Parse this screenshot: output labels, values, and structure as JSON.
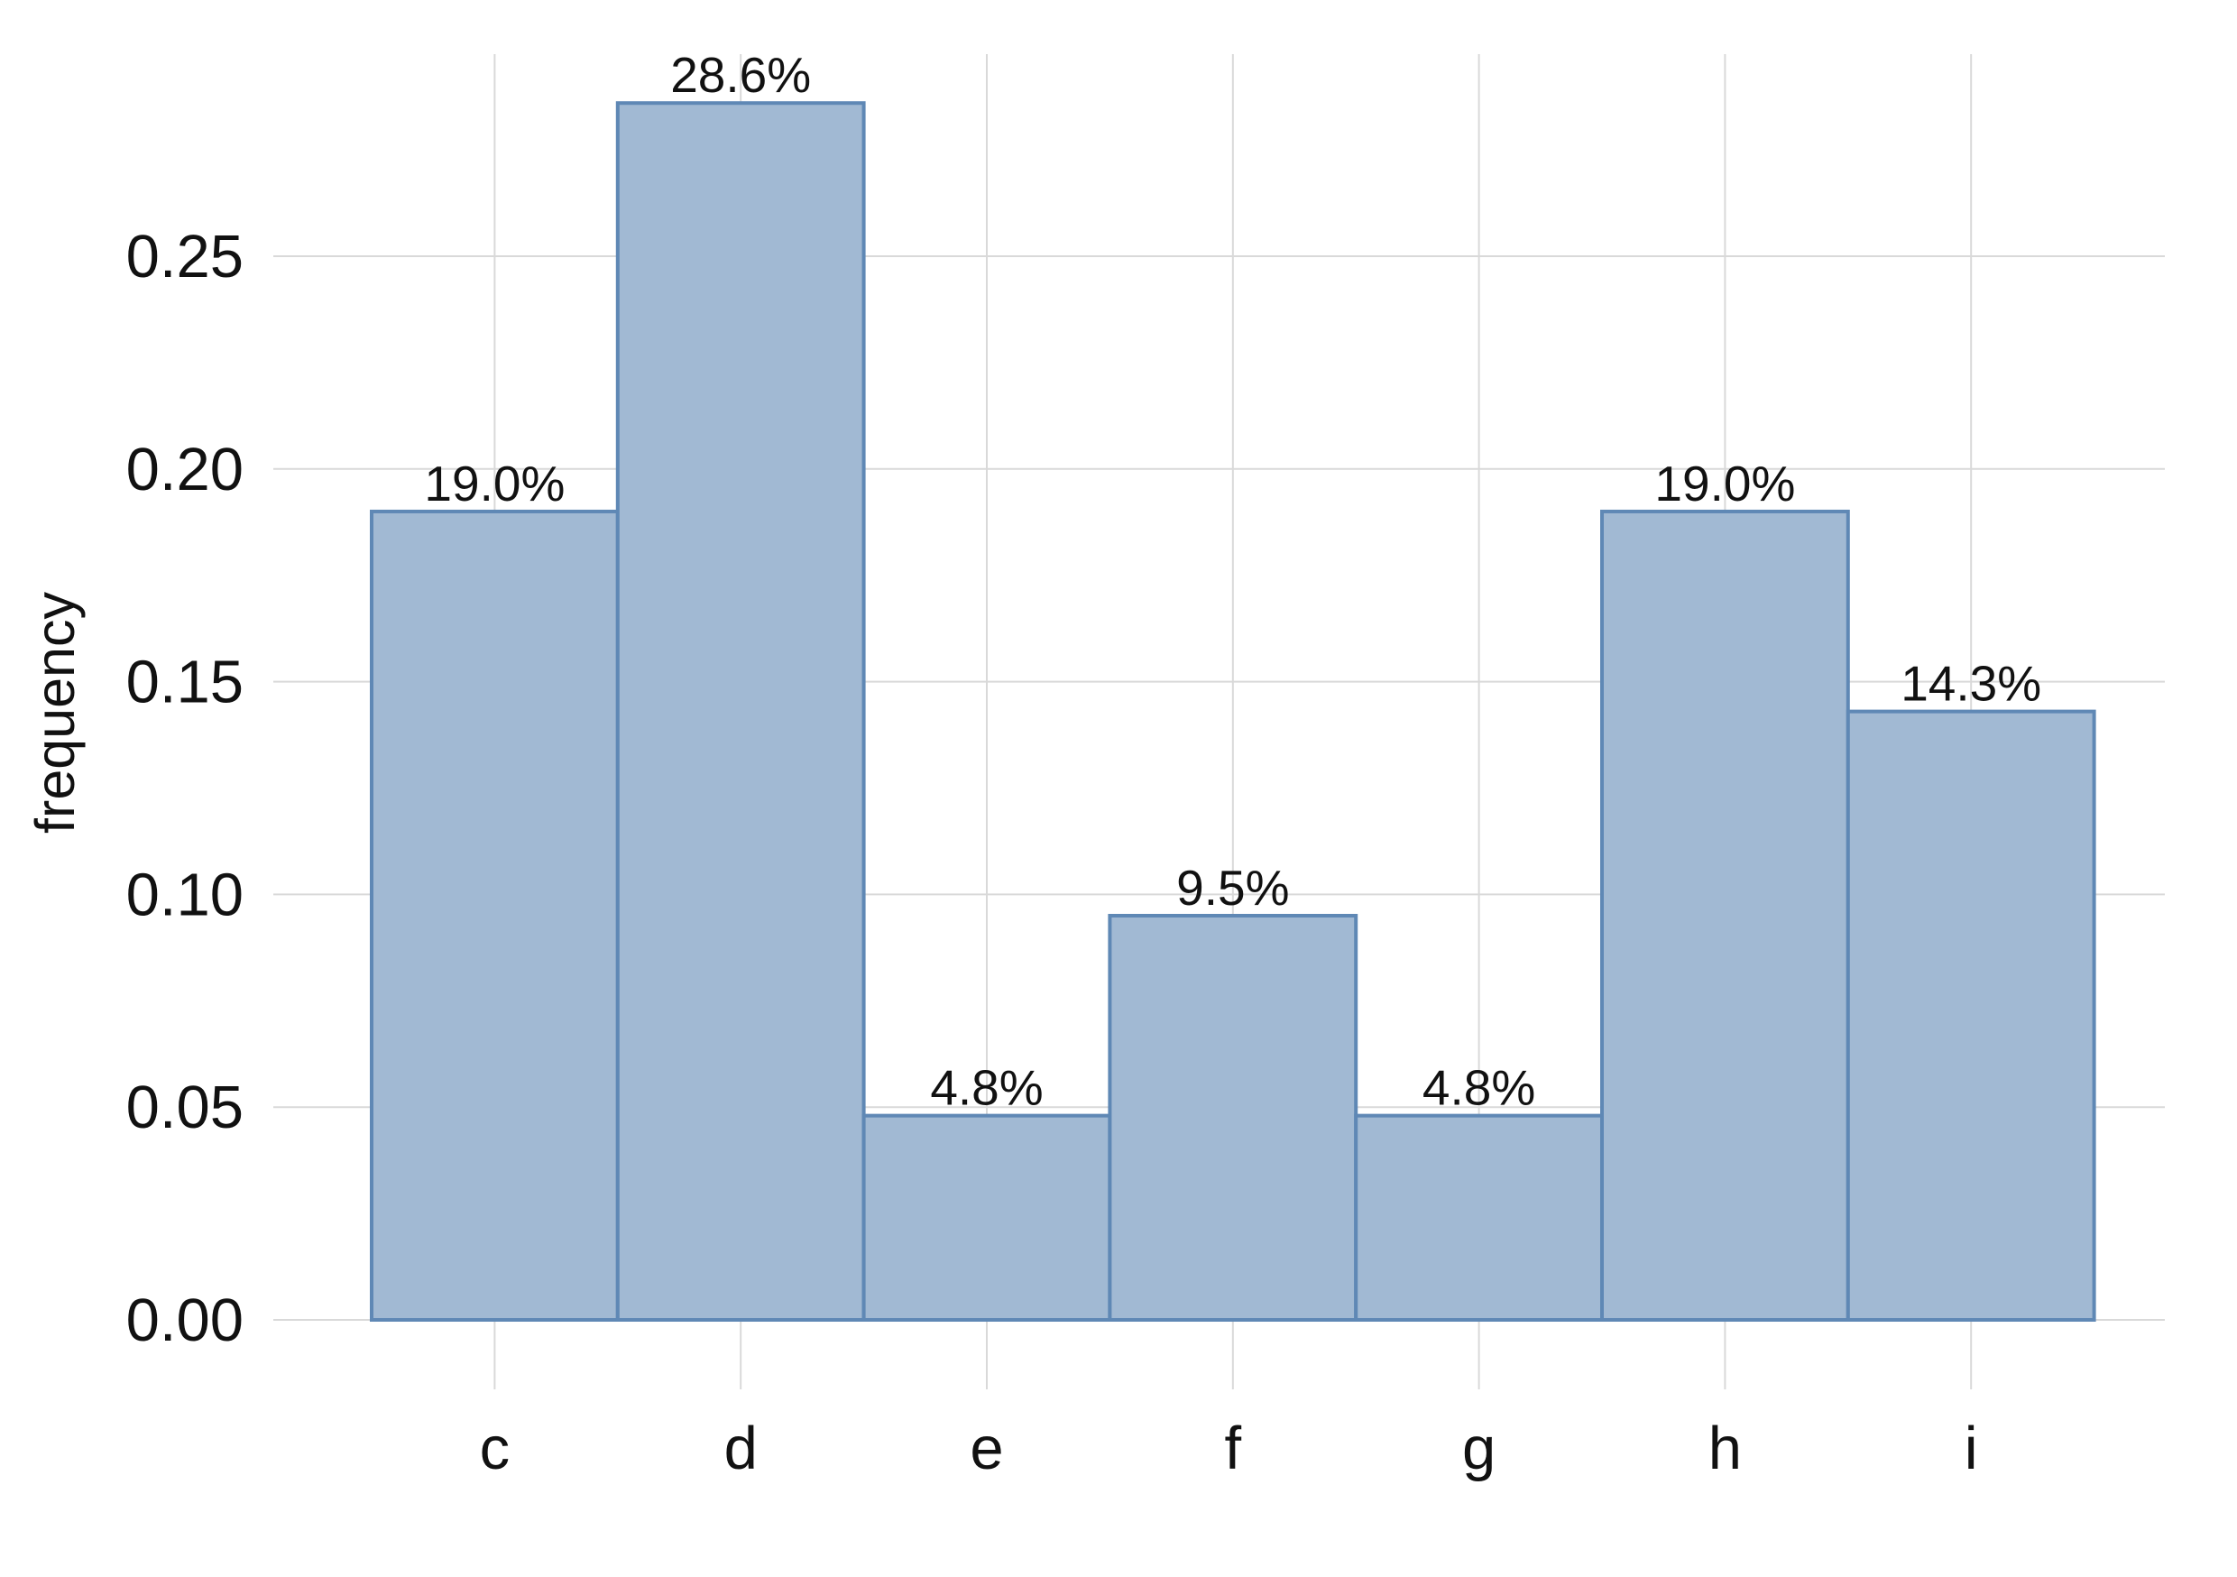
{
  "chart_data": {
    "type": "bar",
    "categories": [
      "c",
      "d",
      "e",
      "f",
      "g",
      "h",
      "i"
    ],
    "values": [
      0.19,
      0.286,
      0.048,
      0.095,
      0.048,
      0.19,
      0.143
    ],
    "data_labels": [
      "19.0%",
      "28.6%",
      "4.8%",
      "9.5%",
      "4.8%",
      "19.0%",
      "14.3%"
    ],
    "title": "",
    "xlabel": "",
    "ylabel": "frequency",
    "ylim": [
      0,
      0.286
    ],
    "yticks": [
      0.0,
      0.05,
      0.1,
      0.15,
      0.2,
      0.25
    ],
    "ytick_labels": [
      "0.00",
      "0.05",
      "0.10",
      "0.15",
      "0.20",
      "0.25"
    ],
    "grid": true,
    "legend": "none",
    "bar_fill": "#a1b9d3",
    "bar_edge": "#5f88b5",
    "gridline_color": "#d9d9d9"
  }
}
